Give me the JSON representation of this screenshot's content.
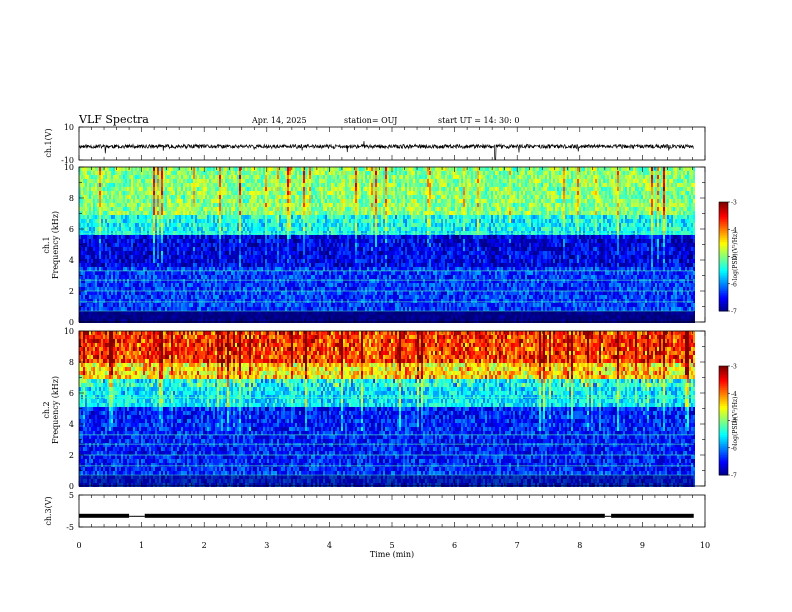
{
  "header": {
    "title": "VLF Spectra",
    "date": "Apr. 14, 2025",
    "station": "station= OUJ",
    "start": "start  UT =   14: 30: 0"
  },
  "chart_data": [
    {
      "type": "line",
      "panel": "ch1-waveform",
      "ylabel": "ch.1(V)",
      "yticks": [
        "10",
        "-10"
      ],
      "ylim": [
        -10,
        10
      ],
      "xlim": [
        0,
        10
      ],
      "color": "#000000"
    },
    {
      "type": "heatmap",
      "panel": "ch1-spectrogram",
      "ylabel_top": "ch.1",
      "ylabel": "Frequency (kHz)",
      "yticks": [
        "0",
        "2",
        "4",
        "6",
        "8",
        "10"
      ],
      "ylim": [
        0,
        10
      ],
      "xlim": [
        0,
        9.82
      ],
      "colorbar": {
        "label": "log(PSD)(V²/Hz)",
        "ticks": [
          "-3",
          "-4",
          "-5",
          "-6",
          "-7"
        ],
        "range": [
          -7,
          -3
        ]
      },
      "layers": [
        {
          "f_from": 0,
          "f_to": 0.8,
          "level": -7
        },
        {
          "f_from": 0.8,
          "f_to": 3.5,
          "level": -6.3
        },
        {
          "f_from": 3.5,
          "f_to": 5.6,
          "level": -6.6
        },
        {
          "f_from": 5.6,
          "f_to": 7.0,
          "level": -5.5
        },
        {
          "f_from": 7.0,
          "f_to": 10,
          "level": -5.0
        }
      ]
    },
    {
      "type": "heatmap",
      "panel": "ch2-spectrogram",
      "ylabel_top": "ch.2",
      "ylabel": "Frequency (kHz)",
      "yticks": [
        "0",
        "2",
        "4",
        "6",
        "8",
        "10"
      ],
      "ylim": [
        0,
        10
      ],
      "xlim": [
        0,
        9.82
      ],
      "colorbar": {
        "label": "log(PSD)(V²/Hz)",
        "ticks": [
          "-3",
          "-4",
          "-5",
          "-6",
          "-7"
        ],
        "range": [
          -7,
          -3
        ]
      },
      "layers": [
        {
          "f_from": 0,
          "f_to": 1.0,
          "level": -6.3
        },
        {
          "f_from": 1.0,
          "f_to": 5.0,
          "level": -6.4
        },
        {
          "f_from": 5.0,
          "f_to": 6.8,
          "level": -5.6
        },
        {
          "f_from": 6.8,
          "f_to": 8.0,
          "level": -4.6
        },
        {
          "f_from": 8.0,
          "f_to": 10,
          "level": -3.9
        }
      ]
    },
    {
      "type": "line",
      "panel": "ch3-waveform",
      "ylabel": "ch.3(V)",
      "yticks": [
        "5",
        "-5"
      ],
      "ylim": [
        -5,
        5
      ],
      "xlim": [
        0,
        10
      ],
      "level": -1.5,
      "gaps": [
        [
          0.8,
          1.05
        ],
        [
          8.4,
          8.5
        ]
      ],
      "color": "#000000"
    }
  ],
  "xaxis": {
    "label": "Time (min)",
    "ticks": [
      "0",
      "1",
      "2",
      "3",
      "4",
      "5",
      "6",
      "7",
      "8",
      "9",
      "10"
    ],
    "range": [
      0,
      10
    ]
  }
}
